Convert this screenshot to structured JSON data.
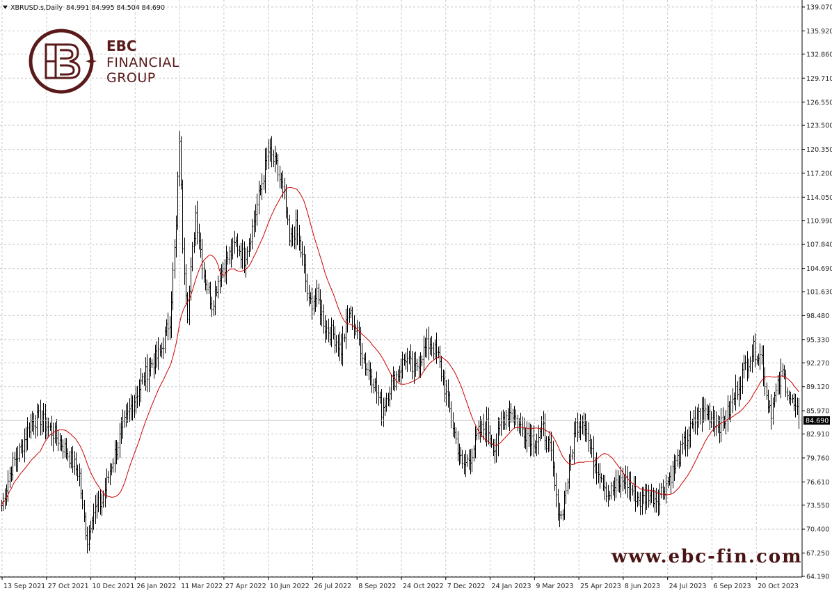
{
  "header": {
    "symbol_label": "XBRUSD.s,Daily",
    "ohlc": "84.991 84.995 84.504 84.690"
  },
  "brand": {
    "name_bold": "EBC",
    "line2": "FINANCIAL",
    "line3": "GROUP",
    "website": "www.ebc-fin.com"
  },
  "colors": {
    "candle": "#000000",
    "ma": "#cc0000",
    "grid": "#c8c8c8",
    "brand": "#5a1a1a",
    "badge": "#000000"
  },
  "chart_data": {
    "type": "bar",
    "symbol": "XBRUSD.s",
    "timeframe": "Daily",
    "last_price": "84.690",
    "ylim": [
      64.19,
      139.07
    ],
    "y_ticks": [
      "139.070",
      "135.920",
      "132.860",
      "129.710",
      "126.550",
      "123.500",
      "120.350",
      "117.200",
      "114.050",
      "110.990",
      "107.840",
      "104.690",
      "101.630",
      "98.480",
      "95.330",
      "92.270",
      "89.120",
      "85.970",
      "82.910",
      "79.760",
      "76.610",
      "73.550",
      "70.400",
      "67.250",
      "64.190"
    ],
    "x_ticks": [
      "13 Sep 2021",
      "27 Oct 2021",
      "10 Dec 2021",
      "26 Jan 2022",
      "11 Mar 2022",
      "27 Apr 2022",
      "10 Jun 2022",
      "26 Jul 2022",
      "8 Sep 2022",
      "24 Oct 2022",
      "7 Dec 2022",
      "24 Jan 2023",
      "9 Mar 2023",
      "25 Apr 2023",
      "8 Jun 2023",
      "24 Jul 2023",
      "6 Sep 2023",
      "20 Oct 2023"
    ],
    "keypoints": [
      [
        0,
        73.5
      ],
      [
        6,
        78.5
      ],
      [
        12,
        81.0
      ],
      [
        18,
        84.5
      ],
      [
        24,
        85.0
      ],
      [
        30,
        83.5
      ],
      [
        36,
        82.0
      ],
      [
        42,
        80.0
      ],
      [
        48,
        77.5
      ],
      [
        50,
        73.0
      ],
      [
        53,
        69.0
      ],
      [
        56,
        72.5
      ],
      [
        62,
        74.0
      ],
      [
        68,
        79.0
      ],
      [
        74,
        83.0
      ],
      [
        80,
        86.5
      ],
      [
        86,
        89.5
      ],
      [
        92,
        92.0
      ],
      [
        98,
        93.5
      ],
      [
        104,
        98.0
      ],
      [
        108,
        110.0
      ],
      [
        110,
        122.0
      ],
      [
        112,
        108.0
      ],
      [
        115,
        99.0
      ],
      [
        120,
        112.0
      ],
      [
        125,
        104.0
      ],
      [
        130,
        100.0
      ],
      [
        135,
        104.0
      ],
      [
        140,
        106.0
      ],
      [
        145,
        108.0
      ],
      [
        150,
        106.0
      ],
      [
        155,
        110.0
      ],
      [
        160,
        115.0
      ],
      [
        165,
        120.0
      ],
      [
        170,
        118.0
      ],
      [
        175,
        114.0
      ],
      [
        178,
        108.0
      ],
      [
        182,
        110.0
      ],
      [
        186,
        106.0
      ],
      [
        190,
        100.0
      ],
      [
        195,
        101.0
      ],
      [
        200,
        97.0
      ],
      [
        205,
        96.0
      ],
      [
        210,
        94.0
      ],
      [
        215,
        99.0
      ],
      [
        220,
        96.0
      ],
      [
        225,
        92.0
      ],
      [
        230,
        90.0
      ],
      [
        235,
        86.0
      ],
      [
        240,
        89.0
      ],
      [
        245,
        91.0
      ],
      [
        250,
        93.0
      ],
      [
        255,
        91.0
      ],
      [
        260,
        93.5
      ],
      [
        265,
        95.0
      ],
      [
        270,
        93.0
      ],
      [
        275,
        88.0
      ],
      [
        280,
        83.0
      ],
      [
        285,
        78.5
      ],
      [
        290,
        80.0
      ],
      [
        295,
        83.0
      ],
      [
        300,
        84.0
      ],
      [
        305,
        81.0
      ],
      [
        310,
        85.0
      ],
      [
        315,
        86.0
      ],
      [
        320,
        84.0
      ],
      [
        325,
        83.0
      ],
      [
        330,
        82.0
      ],
      [
        335,
        83.5
      ],
      [
        340,
        80.0
      ],
      [
        343,
        74.0
      ],
      [
        346,
        72.0
      ],
      [
        350,
        77.0
      ],
      [
        355,
        84.0
      ],
      [
        360,
        85.0
      ],
      [
        365,
        80.0
      ],
      [
        370,
        78.0
      ],
      [
        375,
        75.0
      ],
      [
        380,
        76.0
      ],
      [
        385,
        77.0
      ],
      [
        390,
        75.5
      ],
      [
        395,
        74.0
      ],
      [
        400,
        75.0
      ],
      [
        405,
        74.5
      ],
      [
        410,
        76.0
      ],
      [
        415,
        78.0
      ],
      [
        420,
        80.5
      ],
      [
        425,
        83.0
      ],
      [
        430,
        85.0
      ],
      [
        435,
        86.0
      ],
      [
        440,
        85.0
      ],
      [
        445,
        84.0
      ],
      [
        450,
        86.0
      ],
      [
        455,
        89.0
      ],
      [
        460,
        92.0
      ],
      [
        465,
        94.0
      ],
      [
        470,
        93.0
      ],
      [
        473,
        88.0
      ],
      [
        476,
        86.0
      ],
      [
        480,
        89.0
      ],
      [
        483,
        91.0
      ],
      [
        487,
        88.0
      ],
      [
        490,
        86.5
      ],
      [
        493,
        85.0
      ]
    ],
    "ma_period": 25,
    "last_index": 493
  }
}
